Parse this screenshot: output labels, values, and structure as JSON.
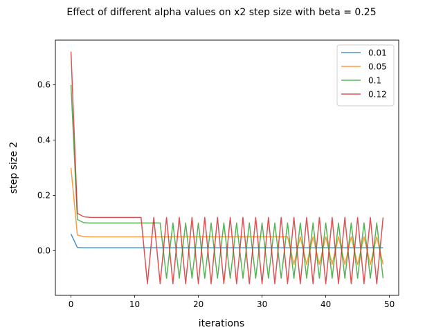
{
  "chart_data": {
    "type": "line",
    "title": "Effect of different alpha values on x2 step size with beta = 0.25",
    "xlabel": "iterations",
    "ylabel": "step size 2",
    "xlim": [
      -2.45,
      51.45
    ],
    "ylim": [
      -0.162,
      0.762
    ],
    "xticks": [
      0,
      10,
      20,
      30,
      40,
      50
    ],
    "yticks": [
      0.0,
      0.2,
      0.4,
      0.6
    ],
    "xtick_labels": [
      "0",
      "10",
      "20",
      "30",
      "40",
      "50"
    ],
    "ytick_labels": [
      "0.0",
      "0.2",
      "0.4",
      "0.6"
    ],
    "grid": false,
    "legend_position": "top-right",
    "series": [
      {
        "name": "0.01",
        "color": "#1f77b4",
        "values": [
          0.06,
          0.0113,
          0.0101,
          0.01,
          0.01,
          0.01,
          0.01,
          0.01,
          0.01,
          0.01,
          0.01,
          0.01,
          0.01,
          0.01,
          0.01,
          0.01,
          0.01,
          0.01,
          0.01,
          0.01,
          0.01,
          0.01,
          0.01,
          0.01,
          0.01,
          0.01,
          0.01,
          0.01,
          0.01,
          0.01,
          0.01,
          0.01,
          0.01,
          0.01,
          0.01,
          0.01,
          0.01,
          0.01,
          0.01,
          0.01,
          0.01,
          0.01,
          0.01,
          0.01,
          0.01,
          0.01,
          0.01,
          0.01,
          0.01,
          0.01
        ]
      },
      {
        "name": "0.05",
        "color": "#ff7f0e",
        "values": [
          0.3,
          0.0563,
          0.0504,
          0.05,
          0.05,
          0.05,
          0.05,
          0.05,
          0.05,
          0.05,
          0.05,
          0.05,
          0.05,
          0.05,
          0.05,
          0.05,
          0.05,
          0.05,
          0.05,
          0.05,
          0.05,
          0.05,
          0.05,
          0.05,
          0.05,
          0.05,
          0.05,
          0.05,
          0.05,
          0.05,
          0.05,
          0.05,
          0.05,
          0.05,
          0.05,
          -0.05,
          0.05,
          -0.05,
          0.05,
          -0.05,
          0.05,
          -0.05,
          0.05,
          -0.05,
          0.05,
          -0.05,
          0.05,
          -0.05,
          0.05,
          -0.05
        ]
      },
      {
        "name": "0.1",
        "color": "#2ca02c",
        "values": [
          0.6,
          0.1125,
          0.1009,
          0.1,
          0.1,
          0.1,
          0.1,
          0.1,
          0.1,
          0.1,
          0.1,
          0.1,
          0.1,
          0.1,
          0.1,
          -0.1,
          0.1,
          -0.1,
          0.1,
          -0.1,
          0.1,
          -0.1,
          0.1,
          -0.1,
          0.1,
          -0.1,
          0.1,
          -0.1,
          0.1,
          -0.1,
          0.1,
          -0.1,
          0.1,
          -0.1,
          0.1,
          -0.1,
          0.1,
          -0.1,
          0.1,
          -0.1,
          0.1,
          -0.1,
          0.1,
          -0.1,
          0.1,
          -0.1,
          0.1,
          -0.1,
          0.1,
          -0.1
        ]
      },
      {
        "name": "0.12",
        "color": "#d62728",
        "values": [
          0.72,
          0.135,
          0.1225,
          0.1202,
          0.12,
          0.12,
          0.12,
          0.12,
          0.12,
          0.12,
          0.12,
          0.12,
          -0.12,
          0.12,
          -0.12,
          0.12,
          -0.12,
          0.12,
          -0.12,
          0.12,
          -0.12,
          0.12,
          -0.12,
          0.12,
          -0.12,
          0.12,
          -0.12,
          0.12,
          -0.12,
          0.12,
          -0.12,
          0.12,
          -0.12,
          0.12,
          -0.12,
          0.12,
          -0.12,
          0.12,
          -0.12,
          0.12,
          -0.12,
          0.12,
          -0.12,
          0.12,
          -0.12,
          0.12,
          -0.12,
          0.12,
          -0.12,
          0.12
        ]
      }
    ]
  }
}
